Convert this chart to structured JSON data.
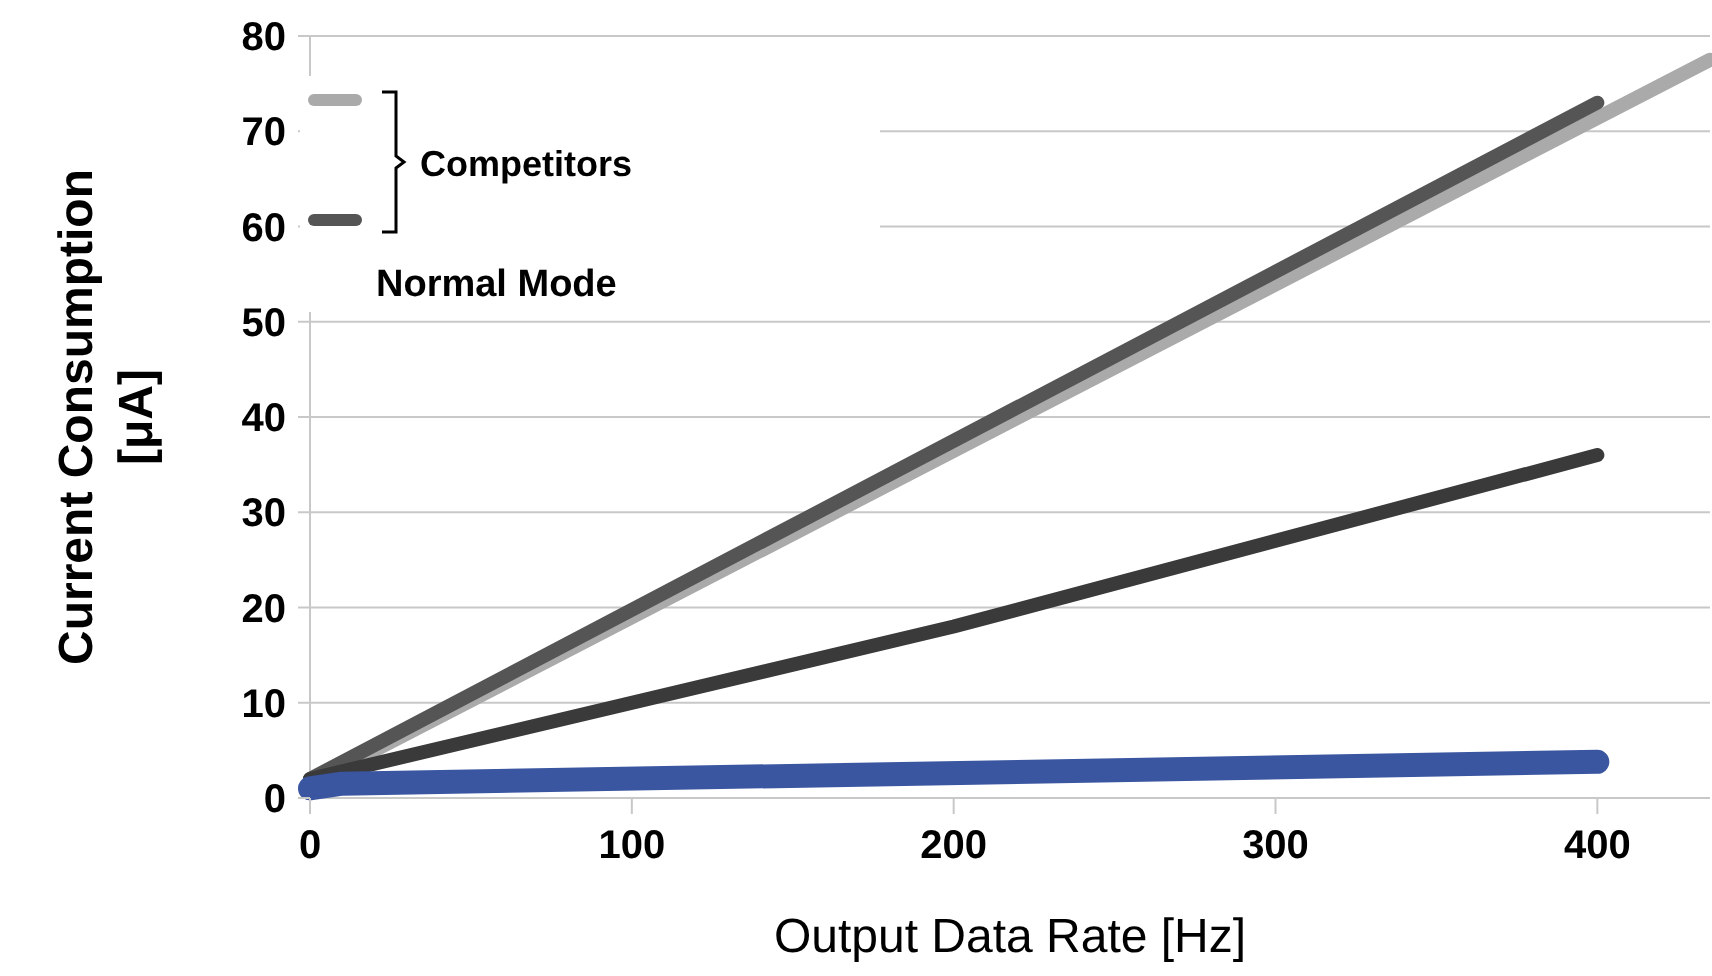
{
  "chart_data": {
    "type": "line",
    "xlabel": "Output Data Rate [Hz]",
    "ylabel": "Current Consumption [μA]",
    "xlim": [
      0,
      435
    ],
    "ylim": [
      0,
      80
    ],
    "xticks": [
      0,
      100,
      200,
      300,
      400
    ],
    "yticks": [
      0,
      10,
      20,
      30,
      40,
      50,
      60,
      70,
      80
    ],
    "grid": "y",
    "marker": "none",
    "line_style": "solid",
    "series": [
      {
        "color": "#aaaaaa",
        "x": [
          0,
          435
        ],
        "values": [
          1.5,
          77.5
        ]
      },
      {
        "color": "#555555",
        "x": [
          0,
          400
        ],
        "values": [
          2,
          73
        ]
      },
      {
        "color": "#3a3a3a",
        "x": [
          0,
          200,
          400
        ],
        "values": [
          2,
          18,
          36
        ]
      },
      {
        "color": "#3a56a0",
        "x": [
          0,
          10,
          400
        ],
        "values": [
          1,
          1.5,
          3.8
        ]
      }
    ],
    "annotations": [
      "Competitors",
      "Normal Mode"
    ]
  }
}
